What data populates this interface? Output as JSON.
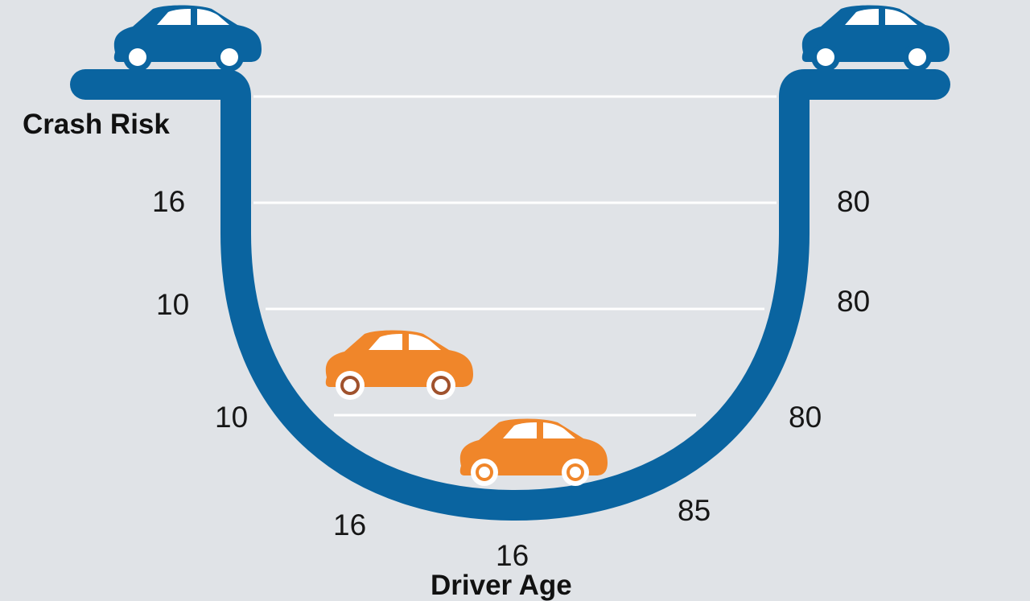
{
  "y_label": "Crash Risk",
  "x_label": "Driver Age",
  "left_labels": [
    "16",
    "10",
    "10",
    "16"
  ],
  "bottom_label": "16",
  "right_labels": [
    "80",
    "80",
    "80",
    "85"
  ],
  "colors": {
    "track": "#0a64a0",
    "background": "#e0e3e7",
    "car_blue": "#0a64a0",
    "car_orange": "#f0862a",
    "gridline": "#ffffff"
  },
  "icons": [
    "car-icon"
  ]
}
